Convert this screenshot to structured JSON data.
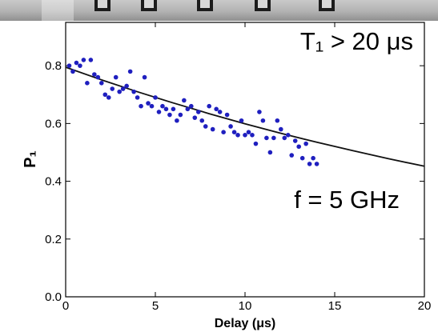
{
  "chart_data": {
    "type": "scatter",
    "xlabel": "Delay (μs)",
    "ylabel": "P₁",
    "xlim": [
      0,
      20
    ],
    "ylim": [
      0.0,
      0.95
    ],
    "xticks": [
      0,
      5,
      10,
      15,
      20
    ],
    "xtick_labels": [
      "0",
      "5",
      "10",
      "15",
      "20"
    ],
    "yticks": [
      0.0,
      0.2,
      0.4,
      0.6,
      0.8
    ],
    "ytick_labels": [
      "0.0",
      "0.2",
      "0.4",
      "0.6",
      "0.8"
    ],
    "grid": false,
    "legend": "none",
    "annotations": [
      "T₁ > 20 μs",
      "f = 5 GHz"
    ],
    "series": [
      {
        "kind": "points",
        "color": "#1f1fbf",
        "x": [
          0.2,
          0.4,
          0.6,
          0.8,
          1.0,
          1.2,
          1.4,
          1.6,
          1.8,
          2.0,
          2.2,
          2.4,
          2.6,
          2.8,
          3.0,
          3.2,
          3.4,
          3.6,
          3.8,
          4.0,
          4.2,
          4.4,
          4.6,
          4.8,
          5.0,
          5.2,
          5.4,
          5.6,
          5.8,
          6.0,
          6.2,
          6.4,
          6.6,
          6.8,
          7.0,
          7.2,
          7.4,
          7.6,
          7.8,
          8.0,
          8.2,
          8.4,
          8.6,
          8.8,
          9.0,
          9.2,
          9.4,
          9.6,
          9.8,
          10.0,
          10.2,
          10.4,
          10.6,
          10.8,
          11.0,
          11.2,
          11.4,
          11.6,
          11.8,
          12.0,
          12.2,
          12.4,
          12.6,
          12.8,
          13.0,
          13.2,
          13.4,
          13.6,
          13.8,
          14.0
        ],
        "y": [
          0.8,
          0.78,
          0.81,
          0.8,
          0.82,
          0.74,
          0.82,
          0.77,
          0.76,
          0.74,
          0.7,
          0.69,
          0.72,
          0.76,
          0.71,
          0.72,
          0.73,
          0.78,
          0.71,
          0.69,
          0.66,
          0.76,
          0.67,
          0.66,
          0.69,
          0.64,
          0.66,
          0.65,
          0.63,
          0.65,
          0.61,
          0.63,
          0.68,
          0.65,
          0.66,
          0.62,
          0.64,
          0.61,
          0.59,
          0.66,
          0.58,
          0.65,
          0.64,
          0.57,
          0.63,
          0.59,
          0.57,
          0.56,
          0.61,
          0.56,
          0.57,
          0.56,
          0.53,
          0.64,
          0.61,
          0.55,
          0.5,
          0.55,
          0.61,
          0.58,
          0.55,
          0.56,
          0.49,
          0.54,
          0.52,
          0.48,
          0.53,
          0.46,
          0.48,
          0.46
        ]
      },
      {
        "kind": "fit",
        "color": "#111111",
        "x": [
          0,
          2,
          4,
          6,
          8,
          10,
          12,
          14,
          16,
          18,
          20
        ],
        "y": [
          0.795,
          0.751,
          0.71,
          0.671,
          0.634,
          0.599,
          0.566,
          0.535,
          0.506,
          0.478,
          0.452
        ]
      }
    ]
  }
}
